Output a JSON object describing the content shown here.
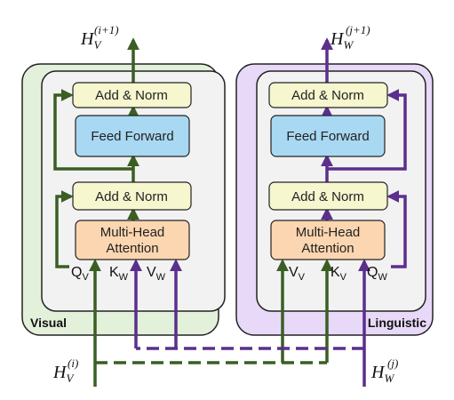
{
  "colors": {
    "visual_block_fill": "#e3f0da",
    "linguistic_block_fill": "#e7d9f7",
    "inner_panel_fill": "#f2f2f2",
    "add_norm_fill": "#f6f6cf",
    "feed_forward_fill": "#a9d8f2",
    "attention_fill": "#fbd6b0",
    "visual_arrow": "#3b5e24",
    "linguistic_arrow": "#5b2f8c"
  },
  "visual": {
    "label": "Visual",
    "output": {
      "base": "H",
      "sub": "V",
      "sup": "(i+1)"
    },
    "input": {
      "base": "H",
      "sub": "V",
      "sup": "(i)"
    },
    "add_norm_top": "Add & Norm",
    "feed_forward": "Feed Forward",
    "add_norm_bottom": "Add & Norm",
    "attention_line1": "Multi-Head",
    "attention_line2": "Attention",
    "q": {
      "base": "Q",
      "sub": "V"
    },
    "k": {
      "base": "K",
      "sub": "W"
    },
    "v": {
      "base": "V",
      "sub": "W"
    }
  },
  "linguistic": {
    "label": "Linguistic",
    "output": {
      "base": "H",
      "sub": "W",
      "sup": "(j+1)"
    },
    "input": {
      "base": "H",
      "sub": "W",
      "sup": "(j)"
    },
    "add_norm_top": "Add & Norm",
    "feed_forward": "Feed Forward",
    "add_norm_bottom": "Add & Norm",
    "attention_line1": "Multi-Head",
    "attention_line2": "Attention",
    "v": {
      "base": "V",
      "sub": "V"
    },
    "k": {
      "base": "K",
      "sub": "V"
    },
    "q": {
      "base": "Q",
      "sub": "W"
    }
  }
}
